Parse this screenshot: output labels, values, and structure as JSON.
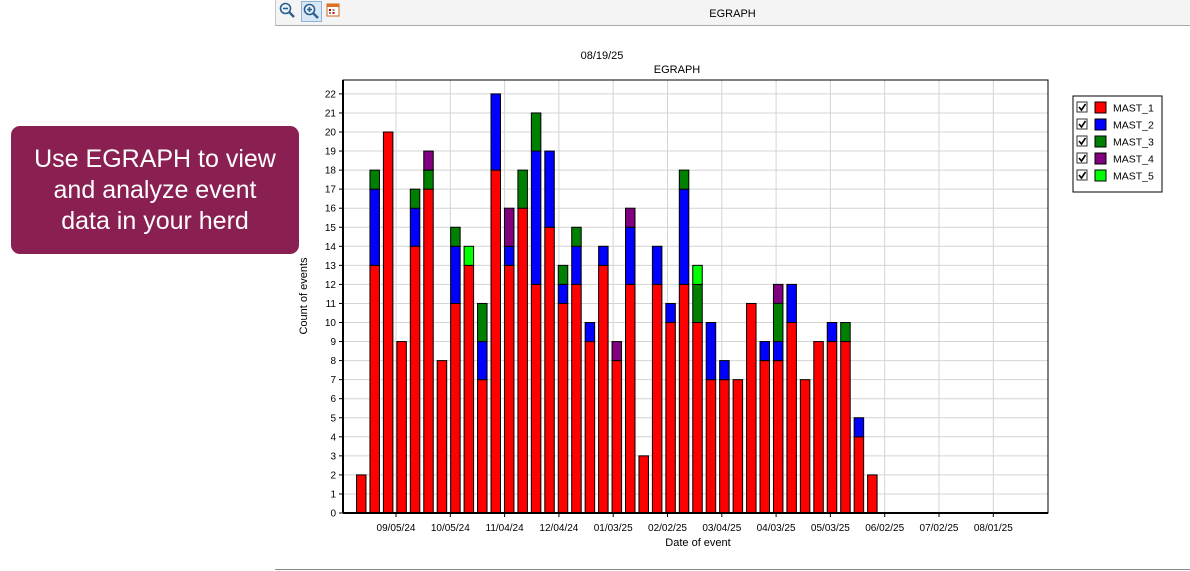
{
  "callout": {
    "lines": [
      "Use EGRAPH to view",
      "and analyze event",
      "data in your herd"
    ]
  },
  "window": {
    "title": "EGRAPH",
    "tools": [
      {
        "icon": "zoom-out-icon"
      },
      {
        "icon": "zoom-in-icon"
      },
      {
        "icon": "calendar-icon"
      }
    ]
  },
  "colors": {
    "MAST_1": "#ff0000",
    "MAST_2": "#0000ff",
    "MAST_3": "#008000",
    "MAST_4": "#800080",
    "MAST_5": "#00ff00"
  },
  "chart_data": {
    "type": "bar",
    "stacked": true,
    "date_label": "08/19/25",
    "title": "EGRAPH",
    "xlabel": "Date of event",
    "ylabel": "Count of events",
    "ylim": [
      0,
      22.5
    ],
    "yticks": [
      0,
      1,
      2,
      3,
      4,
      5,
      6,
      7,
      8,
      9,
      10,
      11,
      12,
      13,
      14,
      15,
      16,
      17,
      18,
      19,
      20,
      21,
      22
    ],
    "xticks": [
      "09/05/24",
      "10/05/24",
      "11/04/24",
      "12/04/24",
      "01/03/25",
      "02/02/25",
      "03/04/25",
      "04/03/25",
      "05/03/25",
      "06/02/25",
      "07/02/25",
      "08/01/25"
    ],
    "grid": true,
    "legend_position": "right",
    "series": [
      {
        "name": "MAST_1",
        "values": [
          2,
          13,
          20,
          9,
          14,
          17,
          8,
          11,
          13,
          7,
          18,
          13,
          16,
          12,
          15,
          11,
          12,
          9,
          13,
          8,
          12,
          3,
          12,
          10,
          12,
          10,
          7,
          7,
          7,
          11,
          8,
          8,
          10,
          7,
          9,
          9,
          9,
          4,
          2
        ]
      },
      {
        "name": "MAST_2",
        "values": [
          0,
          4,
          0,
          0,
          2,
          0,
          0,
          3,
          0,
          2,
          4,
          1,
          0,
          7,
          4,
          1,
          2,
          1,
          1,
          0,
          3,
          0,
          2,
          1,
          5,
          0,
          3,
          1,
          0,
          0,
          1,
          1,
          2,
          0,
          0,
          1,
          0,
          1,
          0
        ]
      },
      {
        "name": "MAST_3",
        "values": [
          0,
          1,
          0,
          0,
          1,
          1,
          0,
          1,
          0,
          2,
          0,
          0,
          2,
          2,
          0,
          1,
          1,
          0,
          0,
          0,
          0,
          0,
          0,
          0,
          1,
          2,
          0,
          0,
          0,
          0,
          0,
          2,
          0,
          0,
          0,
          0,
          1,
          0,
          0
        ]
      },
      {
        "name": "MAST_4",
        "values": [
          0,
          0,
          0,
          0,
          0,
          1,
          0,
          0,
          0,
          0,
          0,
          2,
          0,
          0,
          0,
          0,
          0,
          0,
          0,
          1,
          1,
          0,
          0,
          0,
          0,
          0,
          0,
          0,
          0,
          0,
          0,
          1,
          0,
          0,
          0,
          0,
          0,
          0,
          0
        ]
      },
      {
        "name": "MAST_5",
        "values": [
          0,
          0,
          0,
          0,
          0,
          0,
          0,
          0,
          1,
          0,
          0,
          0,
          0,
          0,
          0,
          0,
          0,
          0,
          0,
          0,
          0,
          0,
          0,
          0,
          0,
          1,
          0,
          0,
          0,
          0,
          0,
          0,
          0,
          0,
          0,
          0,
          0,
          0,
          0
        ]
      }
    ]
  }
}
